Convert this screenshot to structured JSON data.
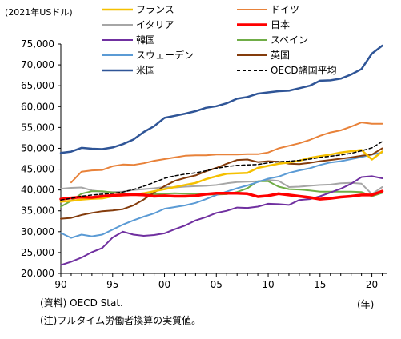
{
  "chart_data": {
    "type": "line",
    "unit_label": "(2021年USドル)",
    "x_unit_label": "(年)",
    "x": [
      1990,
      1991,
      1992,
      1993,
      1994,
      1995,
      1996,
      1997,
      1998,
      1999,
      2000,
      2001,
      2002,
      2003,
      2004,
      2005,
      2006,
      2007,
      2008,
      2009,
      2010,
      2011,
      2012,
      2013,
      2014,
      2015,
      2016,
      2017,
      2018,
      2019,
      2020,
      2021
    ],
    "x_tick_values": [
      1990,
      1995,
      2000,
      2005,
      2010,
      2015,
      2020
    ],
    "x_tick_labels": [
      "90",
      "95",
      "00",
      "05",
      "10",
      "15",
      "20"
    ],
    "ylim": [
      20000,
      75000
    ],
    "y_tick_values": [
      20000,
      25000,
      30000,
      35000,
      40000,
      45000,
      50000,
      55000,
      60000,
      65000,
      70000,
      75000
    ],
    "y_tick_labels": [
      "20,000",
      "25,000",
      "30,000",
      "35,000",
      "40,000",
      "45,000",
      "50,000",
      "55,000",
      "60,000",
      "65,000",
      "70,000",
      "75,000"
    ],
    "grid": false,
    "legend_position": "top",
    "series": [
      {
        "name": "フランス",
        "color": "#f5c000",
        "width": 2.5,
        "dash": "",
        "values": [
          37200,
          37400,
          37700,
          37900,
          38000,
          38500,
          38700,
          38900,
          39200,
          39700,
          40200,
          40700,
          41200,
          41700,
          42600,
          43300,
          43900,
          44000,
          44100,
          45300,
          45800,
          46300,
          46600,
          47000,
          47700,
          48100,
          48500,
          49000,
          49300,
          49600,
          47300,
          49200
        ]
      },
      {
        "name": "ドイツ",
        "color": "#e8823a",
        "width": 2,
        "dash": "",
        "values": [
          null,
          41800,
          44400,
          44700,
          44800,
          45700,
          46100,
          46000,
          46400,
          47000,
          47400,
          47800,
          48200,
          48300,
          48300,
          48500,
          48500,
          48500,
          48600,
          48600,
          49000,
          50000,
          50600,
          51200,
          52000,
          53000,
          53800,
          54300,
          55200,
          56200,
          55900,
          55900
        ]
      },
      {
        "name": "イタリア",
        "color": "#a6a6a6",
        "width": 2,
        "dash": "",
        "values": [
          40300,
          40500,
          40600,
          39900,
          39600,
          39500,
          39600,
          40000,
          40200,
          40400,
          40700,
          40600,
          40800,
          40900,
          41000,
          41200,
          41600,
          41900,
          42000,
          42100,
          42400,
          42200,
          40700,
          40800,
          41000,
          41200,
          41300,
          41600,
          41700,
          41500,
          39000,
          40700
        ]
      },
      {
        "name": "日本",
        "color": "#ff0000",
        "width": 3.5,
        "dash": "",
        "values": [
          37800,
          38100,
          38300,
          38200,
          38500,
          38700,
          38800,
          38900,
          38800,
          38500,
          38600,
          38500,
          38500,
          38600,
          39000,
          39200,
          39200,
          39200,
          39100,
          38400,
          38600,
          39100,
          38800,
          38500,
          38200,
          37800,
          38000,
          38300,
          38500,
          38800,
          38800,
          39700
        ]
      },
      {
        "name": "韓国",
        "color": "#7030a0",
        "width": 2,
        "dash": "",
        "values": [
          22000,
          22800,
          23800,
          25100,
          26100,
          28600,
          30000,
          29300,
          29000,
          29200,
          29600,
          30600,
          31500,
          32700,
          33500,
          34500,
          35000,
          35800,
          35700,
          36000,
          36700,
          36600,
          36400,
          37600,
          37800,
          38500,
          39400,
          40300,
          41500,
          43100,
          43300,
          42800
        ]
      },
      {
        "name": "スペイン",
        "color": "#70ad47",
        "width": 2,
        "dash": "",
        "values": [
          36000,
          37400,
          39100,
          39700,
          39700,
          39400,
          39200,
          38900,
          38900,
          39000,
          39100,
          39200,
          39100,
          39100,
          38900,
          38900,
          39000,
          39500,
          40400,
          42100,
          42100,
          40800,
          40200,
          40100,
          39900,
          39600,
          39600,
          39600,
          39600,
          39500,
          38500,
          39300
        ]
      },
      {
        "name": "スウェーデン",
        "color": "#5b9bd5",
        "width": 2,
        "dash": "",
        "values": [
          29700,
          28500,
          29300,
          28900,
          29300,
          30500,
          31700,
          32700,
          33600,
          34400,
          35500,
          35900,
          36300,
          36900,
          37800,
          38800,
          39600,
          40400,
          41100,
          41900,
          42700,
          43200,
          44100,
          44700,
          45200,
          46000,
          46600,
          46900,
          47400,
          47900,
          48500,
          49000
        ]
      },
      {
        "name": "英国",
        "color": "#843c0c",
        "width": 2,
        "dash": "",
        "values": [
          33100,
          33300,
          34000,
          34500,
          34900,
          35100,
          35400,
          36300,
          37700,
          39400,
          40900,
          42200,
          42900,
          43500,
          44500,
          45300,
          46300,
          47200,
          47300,
          46700,
          46900,
          46800,
          46300,
          46200,
          46500,
          46900,
          47200,
          47500,
          47800,
          48200,
          48500,
          50000
        ]
      },
      {
        "name": "米国",
        "color": "#2f5597",
        "width": 2.5,
        "dash": "",
        "values": [
          48900,
          49200,
          50100,
          49900,
          49800,
          50200,
          51000,
          52100,
          53900,
          55300,
          57300,
          57800,
          58300,
          58900,
          59700,
          60100,
          60800,
          61900,
          62300,
          63100,
          63400,
          63700,
          63800,
          64400,
          65000,
          66200,
          66300,
          66700,
          67700,
          69000,
          72700,
          74600
        ]
      },
      {
        "name": "OECD諸国平均",
        "color": "#000000",
        "width": 1.5,
        "dash": "4,3",
        "values": [
          37600,
          38000,
          38500,
          38800,
          39000,
          39200,
          39500,
          40100,
          40900,
          41800,
          42800,
          43400,
          43800,
          44100,
          44600,
          45200,
          45600,
          45900,
          46000,
          46100,
          46500,
          46800,
          46900,
          47100,
          47400,
          47800,
          48100,
          48400,
          48800,
          49400,
          50100,
          51600
        ]
      }
    ]
  },
  "notes": {
    "source": "(資料)  OECD Stat.",
    "footnote": "(注)フルタイム労働者換算の実質値。"
  }
}
